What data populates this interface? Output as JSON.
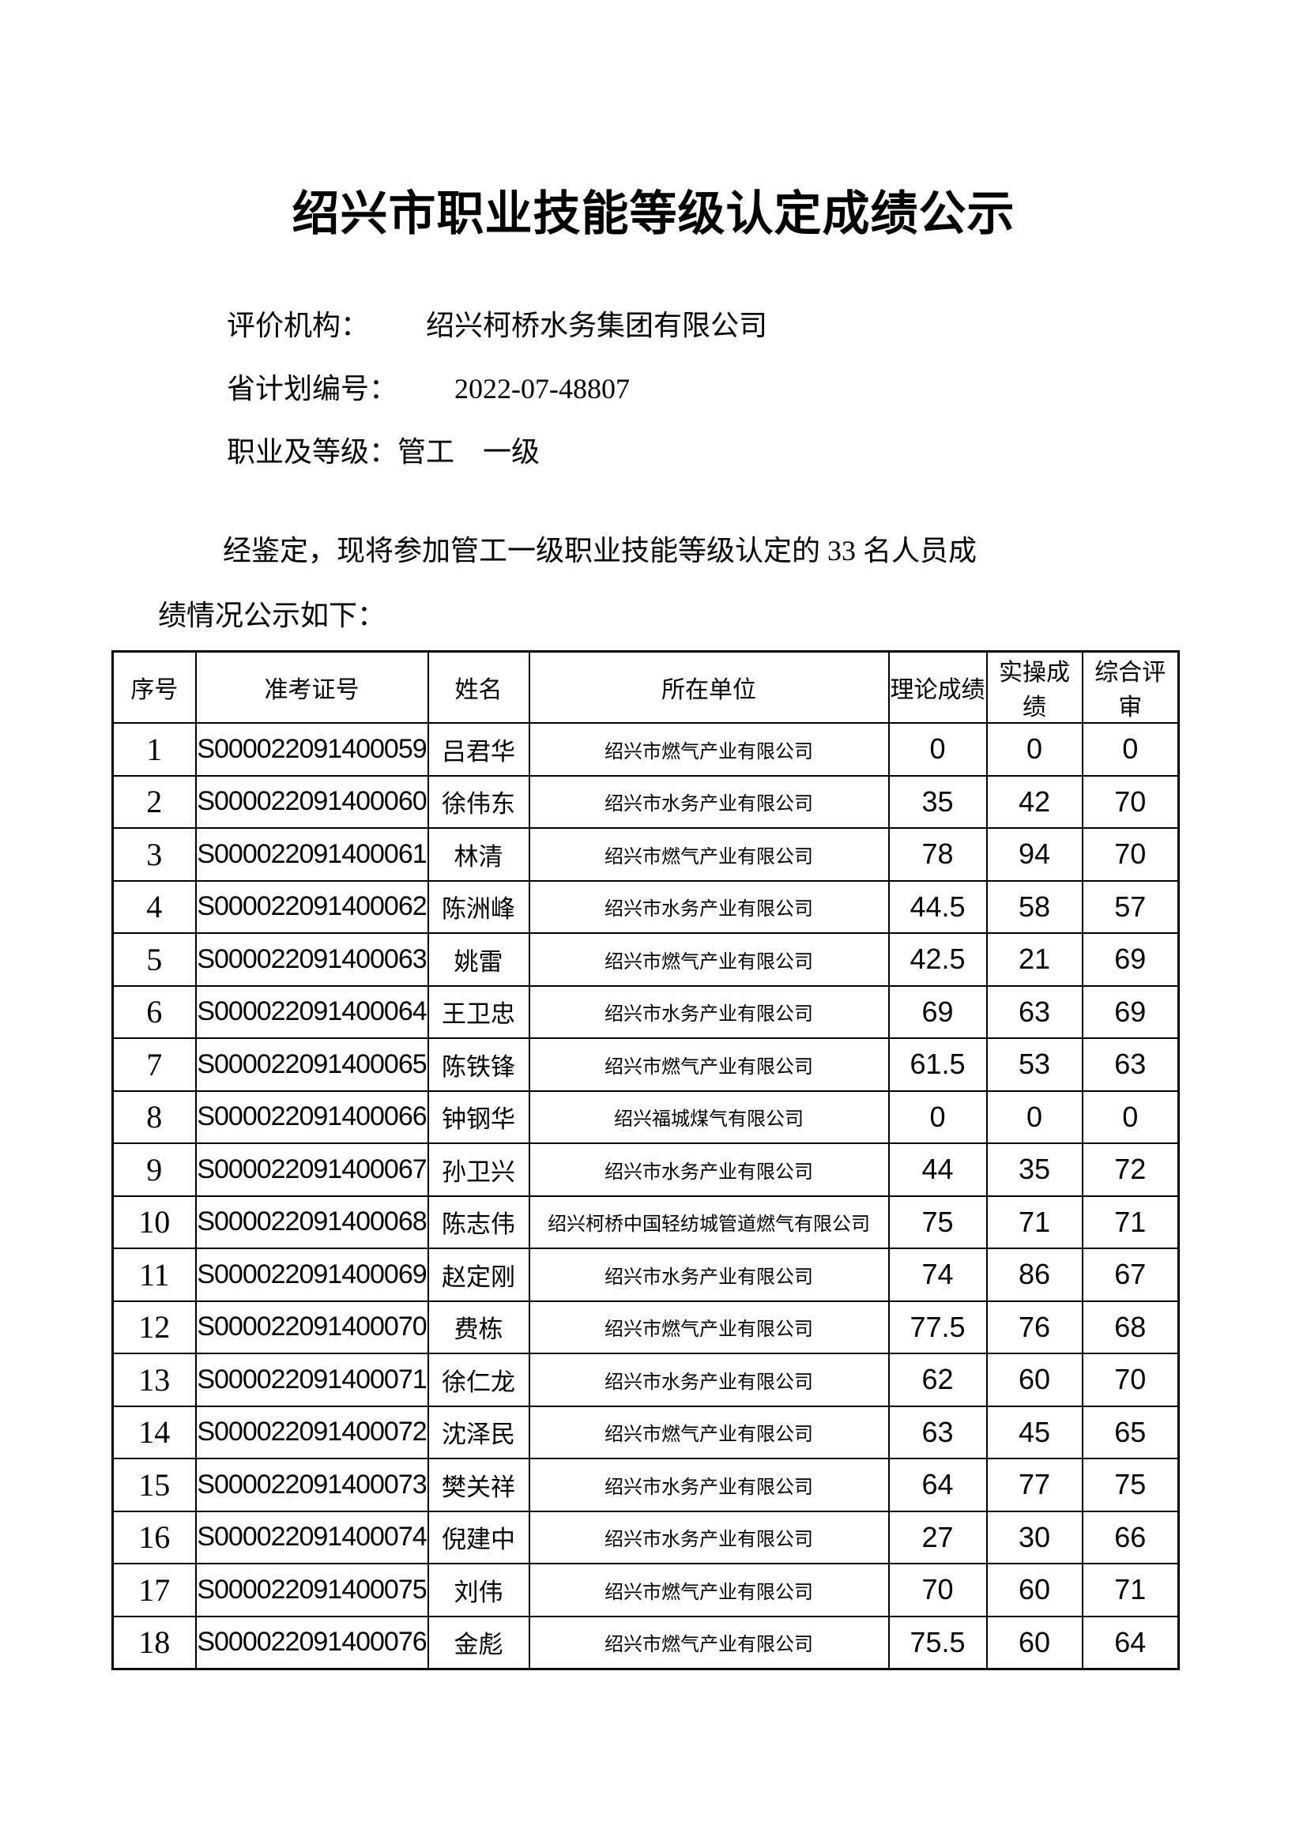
{
  "page": {
    "title": "绍兴市职业技能等级认定成绩公示",
    "info": [
      {
        "label": "评价机构：",
        "value": "绍兴柯桥水务集团有限公司"
      },
      {
        "label": "省计划编号：",
        "value": "2022-07-48807"
      },
      {
        "label": "职业及等级：",
        "value": "管工　一级"
      }
    ],
    "paragraph_line1": "经鉴定，现将参加管工一级职业技能等级认定的 33 名人员成",
    "paragraph_line2": "绩情况公示如下："
  },
  "table": {
    "headers": [
      "序号",
      "准考证号",
      "姓名",
      "所在单位",
      "理论成绩",
      "实操成绩",
      "综合评审"
    ],
    "rows": [
      {
        "no": "1",
        "id": "S000022091400059",
        "name": "吕君华",
        "unit": "绍兴市燃气产业有限公司",
        "theory": "0",
        "practical": "0",
        "review": "0"
      },
      {
        "no": "2",
        "id": "S000022091400060",
        "name": "徐伟东",
        "unit": "绍兴市水务产业有限公司",
        "theory": "35",
        "practical": "42",
        "review": "70"
      },
      {
        "no": "3",
        "id": "S000022091400061",
        "name": "林清",
        "unit": "绍兴市燃气产业有限公司",
        "theory": "78",
        "practical": "94",
        "review": "70"
      },
      {
        "no": "4",
        "id": "S000022091400062",
        "name": "陈洲峰",
        "unit": "绍兴市水务产业有限公司",
        "theory": "44.5",
        "practical": "58",
        "review": "57"
      },
      {
        "no": "5",
        "id": "S000022091400063",
        "name": "姚雷",
        "unit": "绍兴市燃气产业有限公司",
        "theory": "42.5",
        "practical": "21",
        "review": "69"
      },
      {
        "no": "6",
        "id": "S000022091400064",
        "name": "王卫忠",
        "unit": "绍兴市水务产业有限公司",
        "theory": "69",
        "practical": "63",
        "review": "69"
      },
      {
        "no": "7",
        "id": "S000022091400065",
        "name": "陈铁锋",
        "unit": "绍兴市燃气产业有限公司",
        "theory": "61.5",
        "practical": "53",
        "review": "63"
      },
      {
        "no": "8",
        "id": "S000022091400066",
        "name": "钟钢华",
        "unit": "绍兴福城煤气有限公司",
        "theory": "0",
        "practical": "0",
        "review": "0"
      },
      {
        "no": "9",
        "id": "S000022091400067",
        "name": "孙卫兴",
        "unit": "绍兴市水务产业有限公司",
        "theory": "44",
        "practical": "35",
        "review": "72"
      },
      {
        "no": "10",
        "id": "S000022091400068",
        "name": "陈志伟",
        "unit": "绍兴柯桥中国轻纺城管道燃气有限公司",
        "theory": "75",
        "practical": "71",
        "review": "71"
      },
      {
        "no": "11",
        "id": "S000022091400069",
        "name": "赵定刚",
        "unit": "绍兴市水务产业有限公司",
        "theory": "74",
        "practical": "86",
        "review": "67"
      },
      {
        "no": "12",
        "id": "S000022091400070",
        "name": "费栋",
        "unit": "绍兴市燃气产业有限公司",
        "theory": "77.5",
        "practical": "76",
        "review": "68"
      },
      {
        "no": "13",
        "id": "S000022091400071",
        "name": "徐仁龙",
        "unit": "绍兴市水务产业有限公司",
        "theory": "62",
        "practical": "60",
        "review": "70"
      },
      {
        "no": "14",
        "id": "S000022091400072",
        "name": "沈泽民",
        "unit": "绍兴市燃气产业有限公司",
        "theory": "63",
        "practical": "45",
        "review": "65"
      },
      {
        "no": "15",
        "id": "S000022091400073",
        "name": "樊关祥",
        "unit": "绍兴市水务产业有限公司",
        "theory": "64",
        "practical": "77",
        "review": "75"
      },
      {
        "no": "16",
        "id": "S000022091400074",
        "name": "倪建中",
        "unit": "绍兴市水务产业有限公司",
        "theory": "27",
        "practical": "30",
        "review": "66"
      },
      {
        "no": "17",
        "id": "S000022091400075",
        "name": "刘伟",
        "unit": "绍兴市燃气产业有限公司",
        "theory": "70",
        "practical": "60",
        "review": "71"
      },
      {
        "no": "18",
        "id": "S000022091400076",
        "name": "金彪",
        "unit": "绍兴市燃气产业有限公司",
        "theory": "75.5",
        "practical": "60",
        "review": "64"
      }
    ]
  }
}
